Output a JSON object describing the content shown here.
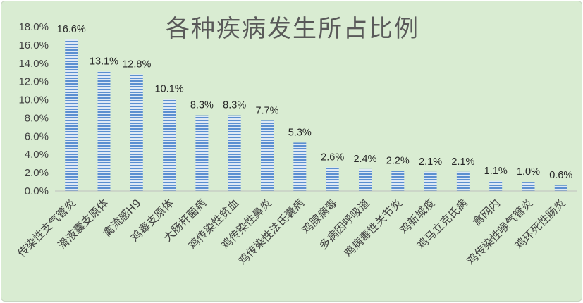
{
  "chart_data": {
    "type": "bar",
    "title": "各种疾病发生所占比例",
    "xlabel": "",
    "ylabel": "",
    "ylim": [
      0,
      18
    ],
    "y_ticks": [
      "0.0%",
      "2.0%",
      "4.0%",
      "6.0%",
      "8.0%",
      "10.0%",
      "12.0%",
      "14.0%",
      "16.0%",
      "18.0%"
    ],
    "categories": [
      "传染性支气管炎",
      "滑液囊支原体",
      "禽流感H9",
      "鸡毒支原体",
      "大肠杆菌病",
      "鸡传染性贫血",
      "鸡传染性鼻炎",
      "鸡传染性法氏囊病",
      "鸡腺病毒",
      "多病因呼吸道",
      "鸡病毒性关节炎",
      "鸡新城疫",
      "鸡马立克氏病",
      "禽网内",
      "鸡传染性喉气管炎",
      "鸡环死性肠炎"
    ],
    "values": [
      16.6,
      13.1,
      12.8,
      10.1,
      8.3,
      8.3,
      7.7,
      5.3,
      2.6,
      2.4,
      2.2,
      2.1,
      2.1,
      1.1,
      1.0,
      0.6
    ],
    "data_labels": [
      "16.6%",
      "13.1%",
      "12.8%",
      "10.1%",
      "8.3%",
      "8.3%",
      "7.7%",
      "5.3%",
      "2.6%",
      "2.4%",
      "2.2%",
      "2.1%",
      "2.1%",
      "1.1%",
      "1.0%",
      "0.6%"
    ],
    "grid": false,
    "legend": "none",
    "colors": {
      "background": "#d9ecd2",
      "bar_stripe_light": "#dfe9f5",
      "bar_stripe_dark": "#5b8fd0",
      "axis": "#bfbfbf",
      "text": "#404040",
      "title": "#595959"
    }
  }
}
